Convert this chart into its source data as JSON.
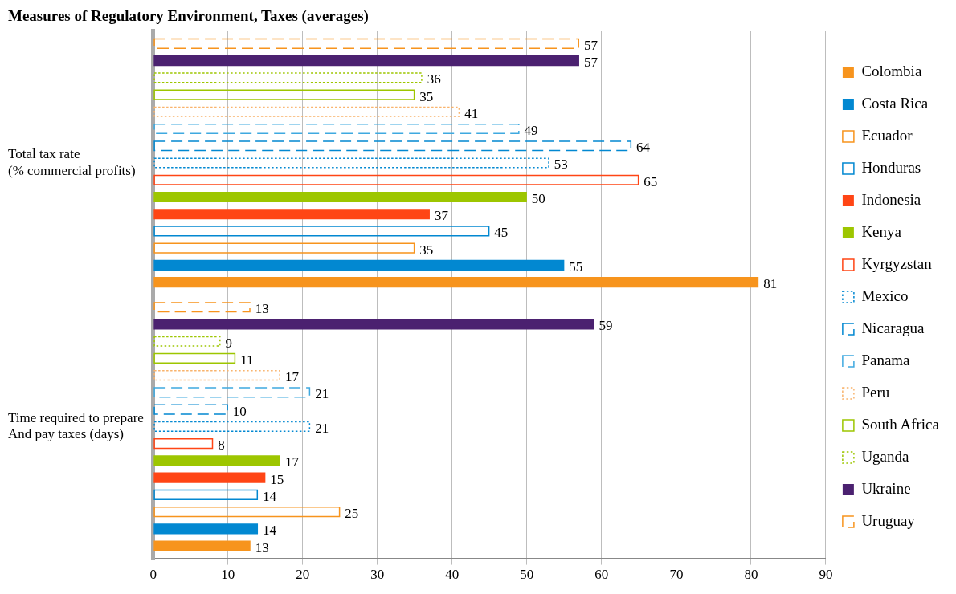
{
  "chart_data": {
    "type": "bar",
    "orientation": "horizontal",
    "title": "Measures of Regulatory Environment, Taxes (averages)",
    "categories": [
      "Total tax rate\n(% commercial profits)",
      "Time required to prepare\nAnd pay taxes (days)"
    ],
    "series": [
      {
        "name": "Uruguay",
        "color": "#f7941d",
        "values": [
          57,
          13
        ],
        "line_style": "dashed"
      },
      {
        "name": "Ukraine",
        "color": "#4b2170",
        "values": [
          57,
          59
        ]
      },
      {
        "name": "Uganda",
        "color": "#9dc600",
        "values": [
          36,
          9
        ],
        "line_style": "dotted"
      },
      {
        "name": "South Africa",
        "color": "#9dc600",
        "values": [
          35,
          11
        ],
        "line_style": "solid"
      },
      {
        "name": "Peru",
        "color": "#f9b36b",
        "values": [
          41,
          17
        ],
        "line_style": "dotted"
      },
      {
        "name": "Panama",
        "color": "#3fa9e0",
        "values": [
          49,
          21
        ],
        "line_style": "dashed"
      },
      {
        "name": "Nicaragua",
        "color": "#0288d1",
        "values": [
          64,
          10
        ],
        "line_style": "dashed"
      },
      {
        "name": "Mexico",
        "color": "#0288d1",
        "values": [
          53,
          21
        ],
        "line_style": "dotted"
      },
      {
        "name": "Kyrgyzstan",
        "color": "#ff4515",
        "values": [
          65,
          8
        ],
        "line_style": "solid"
      },
      {
        "name": "Kenya",
        "color": "#9dc600",
        "values": [
          50,
          17
        ]
      },
      {
        "name": "Indonesia",
        "color": "#ff4515",
        "values": [
          37,
          15
        ]
      },
      {
        "name": "Honduras",
        "color": "#0288d1",
        "values": [
          45,
          14
        ],
        "line_style": "solid"
      },
      {
        "name": "Ecuador",
        "color": "#f7941d",
        "values": [
          35,
          25
        ],
        "line_style": "solid"
      },
      {
        "name": "Costa Rica",
        "color": "#0288d1",
        "values": [
          55,
          14
        ]
      },
      {
        "name": "Colombia",
        "color": "#f7941d",
        "values": [
          81,
          13
        ]
      }
    ],
    "xlim": [
      0,
      90
    ],
    "xticks": [
      0,
      10,
      20,
      30,
      40,
      50,
      60,
      70,
      80,
      90
    ],
    "grid": "x",
    "legend": "right",
    "data_labels": true
  }
}
